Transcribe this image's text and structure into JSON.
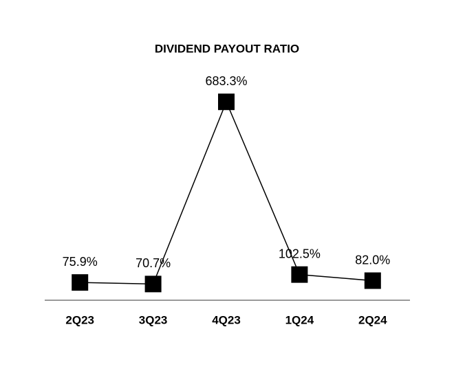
{
  "chart_data": {
    "type": "line",
    "title": "DIVIDEND PAYOUT RATIO",
    "categories": [
      "2Q23",
      "3Q23",
      "4Q23",
      "1Q24",
      "2Q24"
    ],
    "values": [
      75.9,
      70.7,
      683.3,
      102.5,
      82.0
    ],
    "value_labels": [
      "75.9%",
      "70.7%",
      "683.3%",
      "102.5%",
      "82.0%"
    ],
    "color": "#000000",
    "ylim": [
      0,
      700
    ]
  }
}
